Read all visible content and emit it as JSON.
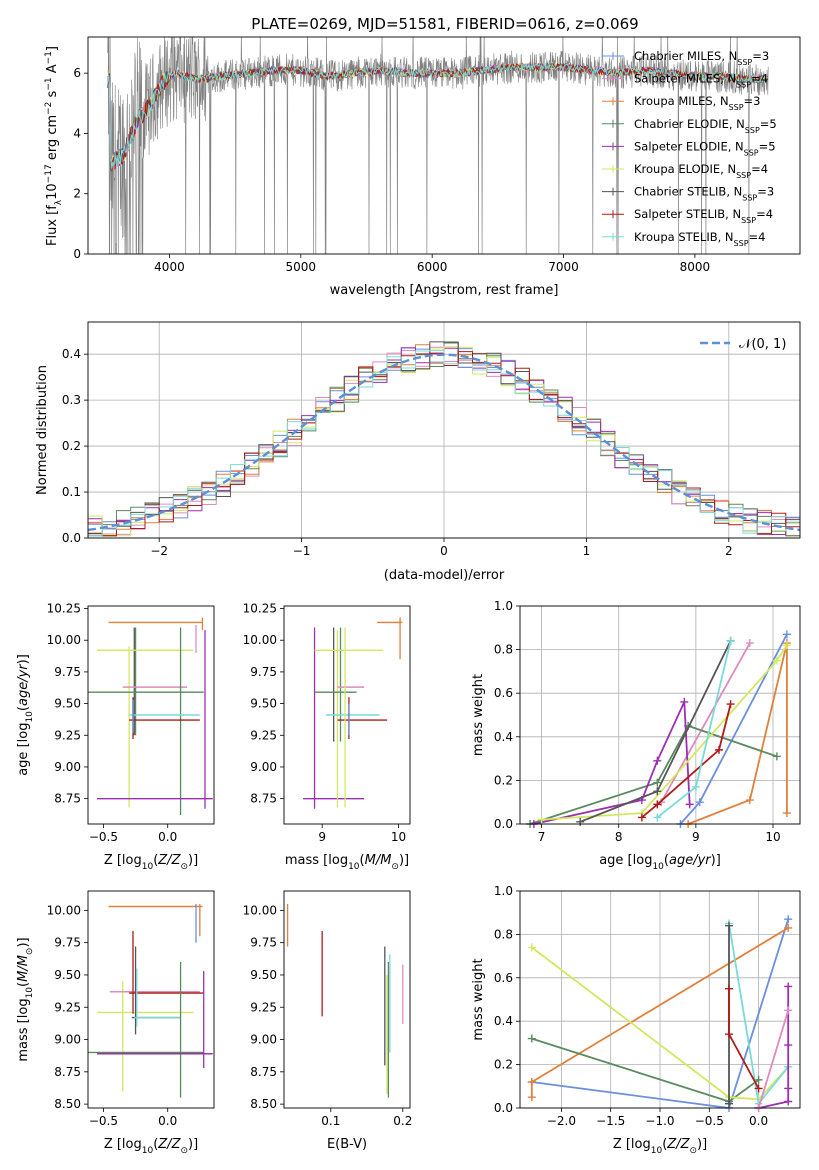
{
  "figure": {
    "title": "PLATE=0269, MJD=51581, FIBERID=0616, z=0.069"
  },
  "models": [
    {
      "name": "Chabrier MILES",
      "nssp": "3",
      "color": "#6a8fde"
    },
    {
      "name": "Salpeter MILES",
      "nssp": "4",
      "color": "#e08abe"
    },
    {
      "name": "Kroupa MILES",
      "nssp": "3",
      "color": "#e0803a"
    },
    {
      "name": "Chabrier ELODIE",
      "nssp": "5",
      "color": "#5a8a5e"
    },
    {
      "name": "Salpeter ELODIE",
      "nssp": "5",
      "color": "#9b2fb0"
    },
    {
      "name": "Kroupa ELODIE",
      "nssp": "4",
      "color": "#d2e860"
    },
    {
      "name": "Chabrier STELIB",
      "nssp": "3",
      "color": "#555555"
    },
    {
      "name": "Salpeter STELIB",
      "nssp": "4",
      "color": "#b01a1a"
    },
    {
      "name": "Kroupa STELIB",
      "nssp": "4",
      "color": "#7adada"
    }
  ],
  "chart_data": [
    {
      "id": "spectrum",
      "type": "line",
      "title": "PLATE=0269, MJD=51581, FIBERID=0616, z=0.069",
      "xlabel": "wavelength [Angstrom, rest frame]",
      "ylabel": "Flux [f_λ 10^-17 erg cm^-2 s^-1 A^-1]",
      "xlim": [
        3380,
        8800
      ],
      "ylim": [
        0,
        7.2
      ],
      "xticks": [
        "4000",
        "5000",
        "6000",
        "7000",
        "8000"
      ],
      "yticks": [
        "0",
        "2",
        "4",
        "6"
      ],
      "legend": "right",
      "continuum_points": [
        [
          3550,
          3.0
        ],
        [
          3650,
          3.3
        ],
        [
          3750,
          4.4
        ],
        [
          3850,
          4.9
        ],
        [
          3950,
          5.7
        ],
        [
          4050,
          6.0
        ],
        [
          4200,
          5.8
        ],
        [
          4400,
          5.9
        ],
        [
          4600,
          6.0
        ],
        [
          4800,
          6.1
        ],
        [
          5000,
          6.1
        ],
        [
          5200,
          5.9
        ],
        [
          5400,
          6.0
        ],
        [
          5600,
          6.1
        ],
        [
          5800,
          6.0
        ],
        [
          6000,
          6.0
        ],
        [
          6200,
          6.0
        ],
        [
          6400,
          6.1
        ],
        [
          6600,
          6.2
        ],
        [
          6800,
          6.2
        ],
        [
          7000,
          6.2
        ],
        [
          7200,
          6.1
        ],
        [
          7400,
          6.0
        ],
        [
          7600,
          6.1
        ],
        [
          7800,
          6.0
        ],
        [
          8000,
          5.9
        ],
        [
          8200,
          5.9
        ],
        [
          8400,
          5.8
        ],
        [
          8560,
          5.8
        ]
      ]
    },
    {
      "id": "residuals",
      "type": "histogram",
      "xlabel": "(data-model)/error",
      "ylabel": "Normed distribution",
      "xlim": [
        -2.5,
        2.5
      ],
      "ylim": [
        0,
        0.47
      ],
      "xticks": [
        "−2",
        "−1",
        "0",
        "1",
        "2"
      ],
      "yticks": [
        "0.0",
        "0.1",
        "0.2",
        "0.3",
        "0.4"
      ],
      "legend_label": "𝒩(0, 1)",
      "reference_curve": "gaussian mean 0 sigma 1"
    },
    {
      "id": "age-vs-Z",
      "type": "errorbar",
      "xlabel": "Z [log10(Z/Z⊙)]",
      "ylabel": "age [log10(age/yr)]",
      "xlim": [
        -0.62,
        0.36
      ],
      "ylim": [
        8.55,
        10.27
      ],
      "xticks": [
        "−0.5",
        "0.0"
      ],
      "yticks": [
        "8.75",
        "9.00",
        "9.25",
        "9.50",
        "9.75",
        "10.00",
        "10.25"
      ],
      "bars": [
        {
          "c": 2,
          "xc": 0.27,
          "xl": -0.46,
          "xh": 0.27,
          "yc": 10.14,
          "yl": 10.08,
          "yh": 10.18
        },
        {
          "c": 1,
          "xc": 0.22,
          "yc": 10.1,
          "yl": 9.9,
          "yh": 10.12
        },
        {
          "c": 6,
          "xc": -0.26,
          "yc": 9.4,
          "yl": 9.25,
          "yh": 10.1
        },
        {
          "c": 3,
          "xc": -0.25,
          "yc": 9.4,
          "yl": 9.25,
          "yh": 10.1
        },
        {
          "c": 5,
          "xc": -0.3,
          "xl": -0.55,
          "xh": 0.2,
          "yc": 9.92,
          "yl": 8.68,
          "yh": 9.95
        },
        {
          "c": 1,
          "xc": -0.3,
          "xl": -0.35,
          "xh": 0.15,
          "yc": 9.63
        },
        {
          "c": 3,
          "xc": 0.1,
          "xl": -0.62,
          "xh": 0.28,
          "yc": 9.59,
          "yl": 8.62,
          "yh": 10.1
        },
        {
          "c": 8,
          "xc": -0.25,
          "xl": -0.3,
          "xh": 0.25,
          "yc": 9.41
        },
        {
          "c": 7,
          "xc": -0.27,
          "xl": -0.3,
          "xh": 0.25,
          "yc": 9.37,
          "yl": 9.22,
          "yh": 9.55
        },
        {
          "c": 4,
          "xc": 0.29,
          "xl": -0.55,
          "xh": 0.35,
          "yc": 8.75,
          "yl": 8.67,
          "yh": 10.08
        },
        {
          "c": 0,
          "xc": -0.27,
          "yc": 9.41,
          "yl": 9.27,
          "yh": 9.53
        }
      ]
    },
    {
      "id": "age-vs-mass",
      "type": "errorbar",
      "xlabel": "mass [log10(M/M⊙)]",
      "ylabel": "",
      "xlim": [
        8.5,
        10.15
      ],
      "ylim": [
        8.55,
        10.27
      ],
      "xticks": [
        "9",
        "10"
      ],
      "yticks": [
        "8.75",
        "9.00",
        "9.25",
        "9.50",
        "9.75",
        "10.00",
        "10.25"
      ],
      "bars": [
        {
          "c": 2,
          "xc": 10.02,
          "xl": 9.72,
          "xh": 10.05,
          "yc": 10.14,
          "yl": 9.85,
          "yh": 10.18
        },
        {
          "c": 6,
          "xc": 9.15,
          "yc": 9.4,
          "yl": 9.2,
          "yh": 10.1
        },
        {
          "c": 3,
          "xc": 9.24,
          "yc": 9.4,
          "yl": 9.2,
          "yh": 10.1
        },
        {
          "c": 4,
          "xc": 8.9,
          "xl": 8.75,
          "xh": 9.55,
          "yc": 8.75,
          "yl": 8.67,
          "yh": 10.1
        },
        {
          "c": 5,
          "xc": 9.2,
          "xl": 8.9,
          "xh": 9.8,
          "yc": 9.92,
          "yl": 8.68,
          "yh": 10.08
        },
        {
          "c": 1,
          "xc": 9.3,
          "xl": 9.2,
          "xh": 9.55,
          "yc": 9.63
        },
        {
          "c": 3,
          "xc": 9.0,
          "xl": 8.9,
          "xh": 9.45,
          "yc": 9.59
        },
        {
          "c": 8,
          "xc": 9.2,
          "xl": 9.05,
          "xh": 9.75,
          "yc": 9.41
        },
        {
          "c": 7,
          "xc": 9.35,
          "xl": 9.2,
          "xh": 9.85,
          "yc": 9.37,
          "yl": 9.22,
          "yh": 9.55
        },
        {
          "c": 0,
          "xc": 9.35,
          "yc": 9.41,
          "yl": 9.25,
          "yh": 9.5
        },
        {
          "c": 5,
          "xc": 9.3,
          "yc": 9.92,
          "yl": 8.68,
          "yh": 10.1
        }
      ]
    },
    {
      "id": "weight-vs-age",
      "type": "line",
      "xlabel": "age [log10(age/yr)]",
      "ylabel": "mass weight",
      "xlim": [
        6.72,
        10.35
      ],
      "ylim": [
        0,
        1
      ],
      "xticks": [
        "7",
        "8",
        "9",
        "10"
      ],
      "yticks": [
        "0.0",
        "0.2",
        "0.4",
        "0.6",
        "0.8",
        "1.0"
      ],
      "series": [
        {
          "c": 0,
          "pts": [
            [
              8.8,
              0.0
            ],
            [
              9.05,
              0.1
            ],
            [
              10.18,
              0.87
            ]
          ]
        },
        {
          "c": 1,
          "pts": [
            [
              8.55,
              0.1
            ],
            [
              9.7,
              0.83
            ]
          ]
        },
        {
          "c": 2,
          "pts": [
            [
              8.9,
              0.0
            ],
            [
              9.7,
              0.11
            ],
            [
              10.18,
              0.83
            ],
            [
              10.18,
              0.05
            ]
          ]
        },
        {
          "c": 3,
          "pts": [
            [
              6.85,
              0.0
            ],
            [
              8.5,
              0.19
            ],
            [
              8.9,
              0.45
            ],
            [
              10.05,
              0.31
            ]
          ]
        },
        {
          "c": 4,
          "pts": [
            [
              6.9,
              0.0
            ],
            [
              8.3,
              0.11
            ],
            [
              8.5,
              0.29
            ],
            [
              8.85,
              0.56
            ],
            [
              8.92,
              0.09
            ]
          ]
        },
        {
          "c": 5,
          "pts": [
            [
              7.0,
              0.02
            ],
            [
              8.3,
              0.05
            ],
            [
              10.05,
              0.75
            ],
            [
              10.18,
              0.82
            ]
          ]
        },
        {
          "c": 6,
          "pts": [
            [
              7.5,
              0.01
            ],
            [
              8.5,
              0.15
            ],
            [
              9.45,
              0.84
            ]
          ]
        },
        {
          "c": 7,
          "pts": [
            [
              8.3,
              0.03
            ],
            [
              8.5,
              0.09
            ],
            [
              9.3,
              0.34
            ],
            [
              9.45,
              0.55
            ]
          ]
        },
        {
          "c": 8,
          "pts": [
            [
              8.5,
              0.03
            ],
            [
              9.0,
              0.17
            ],
            [
              9.45,
              0.84
            ]
          ]
        }
      ]
    },
    {
      "id": "mass-vs-Z",
      "type": "errorbar",
      "xlabel": "Z [log10(Z/Z⊙)]",
      "ylabel": "mass [log10(M/M⊙)]",
      "xlim": [
        -0.62,
        0.36
      ],
      "ylim": [
        8.47,
        10.15
      ],
      "xticks": [
        "−0.5",
        "0.0"
      ],
      "yticks": [
        "8.50",
        "8.75",
        "9.00",
        "9.25",
        "9.50",
        "9.75",
        "10.00"
      ],
      "bars": [
        {
          "c": 2,
          "xc": 0.25,
          "xl": -0.46,
          "xh": 0.27,
          "yc": 10.03,
          "yl": 9.8,
          "yh": 10.05
        },
        {
          "c": 0,
          "xc": 0.22,
          "yc": 10.03,
          "yl": 9.75,
          "yh": 10.05
        },
        {
          "c": 5,
          "xc": -0.35,
          "xl": -0.55,
          "xh": 0.2,
          "yc": 9.21,
          "yl": 8.6,
          "yh": 9.45
        },
        {
          "c": 1,
          "xc": -0.3,
          "xl": -0.45,
          "xh": 0.25,
          "yc": 9.37
        },
        {
          "c": 7,
          "xc": -0.27,
          "xl": -0.3,
          "xh": 0.28,
          "yc": 9.36,
          "yl": 9.2,
          "yh": 9.84
        },
        {
          "c": 6,
          "xc": -0.25,
          "xl": -0.28,
          "xh": 0.1,
          "yc": 9.17,
          "yl": 9.04,
          "yh": 9.72
        },
        {
          "c": 8,
          "xc": -0.24,
          "xl": -0.26,
          "xh": 0.1,
          "yc": 9.17,
          "yl": 9.1,
          "yh": 9.55
        },
        {
          "c": 3,
          "xc": 0.1,
          "xl": -0.62,
          "xh": 0.28,
          "yc": 8.9,
          "yl": 8.55,
          "yh": 9.6
        },
        {
          "c": 4,
          "xc": 0.28,
          "xl": -0.55,
          "xh": 0.35,
          "yc": 8.89,
          "yl": 8.78,
          "yh": 9.53
        }
      ]
    },
    {
      "id": "mass-vs-EBV",
      "type": "errorbar",
      "xlabel": "E(B-V)",
      "ylabel": "",
      "xlim": [
        0.035,
        0.21
      ],
      "ylim": [
        8.47,
        10.15
      ],
      "xticks": [
        "0.1",
        "0.2"
      ],
      "yticks": [
        "8.50",
        "8.75",
        "9.00",
        "9.25",
        "9.50",
        "9.75",
        "10.00"
      ],
      "bars": [
        {
          "c": 2,
          "xc": 0.04,
          "yc": 9.9,
          "yl": 9.72,
          "yh": 10.05
        },
        {
          "c": 7,
          "xc": 0.088,
          "yc": 9.5,
          "yl": 9.18,
          "yh": 9.84
        },
        {
          "c": 6,
          "xc": 0.175,
          "yc": 9.3,
          "yl": 8.8,
          "yh": 9.72
        },
        {
          "c": 5,
          "xc": 0.178,
          "yc": 9.1,
          "yl": 8.58,
          "yh": 9.5
        },
        {
          "c": 3,
          "xc": 0.18,
          "yc": 9.1,
          "yl": 8.55,
          "yh": 9.6
        },
        {
          "c": 8,
          "xc": 0.182,
          "yc": 9.3,
          "yl": 8.9,
          "yh": 9.66
        },
        {
          "c": 1,
          "xc": 0.2,
          "yc": 9.35,
          "yl": 9.12,
          "yh": 9.58
        }
      ]
    },
    {
      "id": "weight-vs-Z",
      "type": "line",
      "xlabel": "Z [log10(Z/Z⊙)]",
      "ylabel": "mass weight",
      "xlim": [
        -2.42,
        0.42
      ],
      "ylim": [
        0,
        1
      ],
      "xticks": [
        "−2.0",
        "−1.5",
        "−1.0",
        "−0.5",
        "0.0"
      ],
      "yticks": [
        "0.0",
        "0.2",
        "0.4",
        "0.6",
        "0.8",
        "1.0"
      ],
      "series": [
        {
          "c": 0,
          "pts": [
            [
              -2.3,
              0.12
            ],
            [
              -0.3,
              0.0
            ],
            [
              0.3,
              0.87
            ]
          ]
        },
        {
          "c": 2,
          "pts": [
            [
              -2.3,
              0.05
            ],
            [
              -2.3,
              0.12
            ],
            [
              0.3,
              0.83
            ]
          ]
        },
        {
          "c": 3,
          "pts": [
            [
              -2.3,
              0.32
            ],
            [
              -0.3,
              0.03
            ],
            [
              0.0,
              0.13
            ]
          ]
        },
        {
          "c": 5,
          "pts": [
            [
              -2.3,
              0.74
            ],
            [
              -0.3,
              0.05
            ],
            [
              0.0,
              0.04
            ],
            [
              0.3,
              0.19
            ]
          ]
        },
        {
          "c": 8,
          "pts": [
            [
              -0.3,
              0.85
            ],
            [
              0.0,
              0.02
            ],
            [
              0.3,
              0.19
            ]
          ]
        },
        {
          "c": 6,
          "pts": [
            [
              -0.3,
              0.84
            ],
            [
              -0.3,
              0.02
            ]
          ]
        },
        {
          "c": 7,
          "pts": [
            [
              -0.3,
              0.55
            ],
            [
              -0.3,
              0.34
            ],
            [
              0.0,
              0.09
            ]
          ]
        },
        {
          "c": 4,
          "pts": [
            [
              0.3,
              0.56
            ],
            [
              0.3,
              0.29
            ],
            [
              0.3,
              0.09
            ],
            [
              0.3,
              0.03
            ],
            [
              0.0,
              0.0
            ]
          ]
        },
        {
          "c": 1,
          "pts": [
            [
              0.0,
              0.0
            ],
            [
              0.3,
              0.45
            ]
          ]
        }
      ]
    }
  ]
}
